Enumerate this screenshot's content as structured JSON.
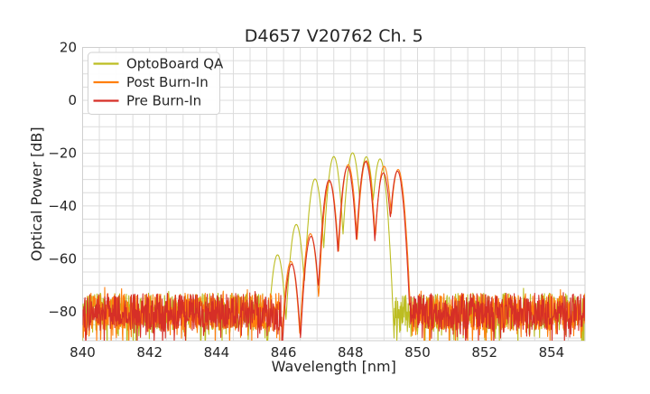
{
  "chart_data": {
    "type": "line",
    "title": "D4657 V20762 Ch. 5",
    "xlabel": "Wavelength [nm]",
    "ylabel": "Optical Power [dB]",
    "xlim": [
      840,
      855
    ],
    "ylim": [
      -91,
      20
    ],
    "xticks": [
      {
        "v": 840,
        "label": "840"
      },
      {
        "v": 842,
        "label": "842"
      },
      {
        "v": 844,
        "label": "844"
      },
      {
        "v": 846,
        "label": "846"
      },
      {
        "v": 848,
        "label": "848"
      },
      {
        "v": 850,
        "label": "850"
      },
      {
        "v": 852,
        "label": "852"
      },
      {
        "v": 854,
        "label": "854"
      }
    ],
    "yticks": [
      {
        "v": 20,
        "label": "20"
      },
      {
        "v": 0,
        "label": "0"
      },
      {
        "v": -20,
        "label": "−20"
      },
      {
        "v": -40,
        "label": "−40"
      },
      {
        "v": -60,
        "label": "−60"
      },
      {
        "v": -80,
        "label": "−80"
      }
    ],
    "grid": {
      "x_step": 0.5,
      "y_step": 5,
      "color": "#dcdcdc"
    },
    "legend": {
      "position": "upper-left"
    },
    "series": [
      {
        "name": "OptoBoard QA",
        "color": "#bcbd22",
        "seed": 7,
        "mode_halfwidth": 0.265,
        "valley_depth": 27,
        "noise": {
          "regions": [
            [
              840,
              845.5
            ],
            [
              849.3,
              855
            ]
          ],
          "mean": -80,
          "spread": 7
        },
        "modes": [
          {
            "c": 845.82,
            "p": -58.5
          },
          {
            "c": 846.38,
            "p": -47.0
          },
          {
            "c": 846.94,
            "p": -29.8
          },
          {
            "c": 847.5,
            "p": -21.3
          },
          {
            "c": 848.06,
            "p": -19.9
          },
          {
            "c": 848.47,
            "p": -21.4
          },
          {
            "c": 848.88,
            "p": -22.2
          }
        ]
      },
      {
        "name": "Post Burn-In",
        "color": "#ff7f0e",
        "seed": 13,
        "mode_halfwidth": 0.26,
        "valley_depth": 27,
        "noise": {
          "regions": [
            [
              840,
              845.88
            ],
            [
              849.6,
              855
            ]
          ],
          "mean": -80,
          "spread": 7
        },
        "modes": [
          {
            "c": 846.22,
            "p": -61.0
          },
          {
            "c": 846.8,
            "p": -50.5
          },
          {
            "c": 847.38,
            "p": -30.8
          },
          {
            "c": 847.93,
            "p": -24.4
          },
          {
            "c": 848.47,
            "p": -22.9
          },
          {
            "c": 849.0,
            "p": -25.0
          },
          {
            "c": 849.42,
            "p": -26.2
          }
        ]
      },
      {
        "name": "Pre Burn-In",
        "color": "#d62f27",
        "seed": 101,
        "mode_halfwidth": 0.26,
        "valley_depth": 27,
        "noise": {
          "regions": [
            [
              840,
              845.95
            ],
            [
              849.63,
              855
            ]
          ],
          "mean": -80,
          "spread": 7
        },
        "modes": [
          {
            "c": 846.24,
            "p": -62.0
          },
          {
            "c": 846.82,
            "p": -51.5
          },
          {
            "c": 847.36,
            "p": -30.2
          },
          {
            "c": 847.91,
            "p": -25.2
          },
          {
            "c": 848.45,
            "p": -23.2
          },
          {
            "c": 848.98,
            "p": -27.5
          },
          {
            "c": 849.4,
            "p": -26.8
          }
        ]
      }
    ]
  }
}
